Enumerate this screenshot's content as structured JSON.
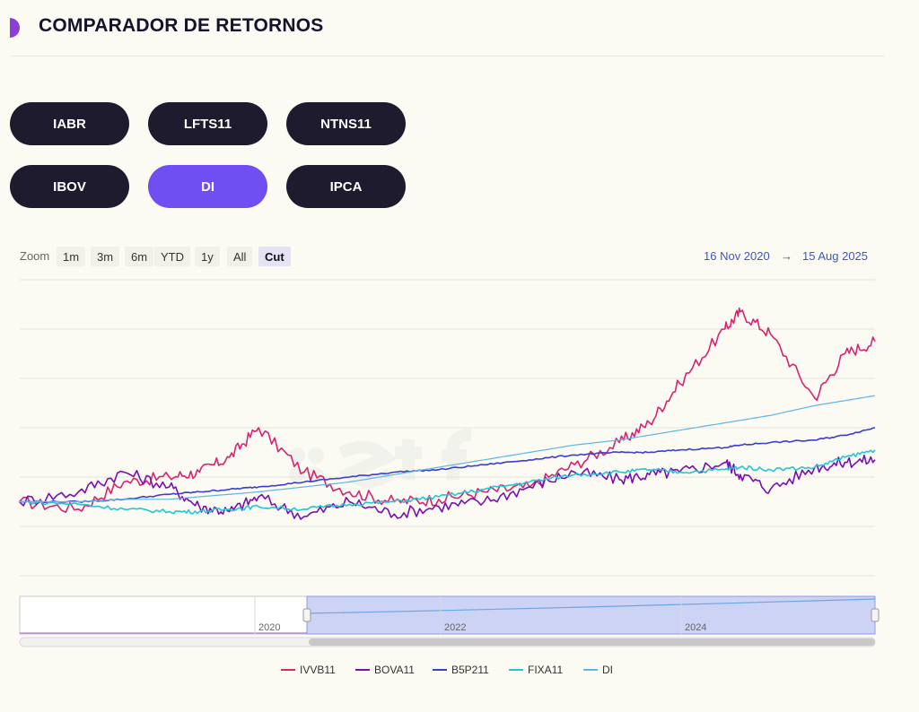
{
  "header": {
    "title": "COMPARADOR DE RETORNOS"
  },
  "buttons": [
    {
      "label": "IABR",
      "active": false
    },
    {
      "label": "LFTS11",
      "active": false
    },
    {
      "label": "NTNS11",
      "active": false
    },
    {
      "label": "IBOV",
      "active": false
    },
    {
      "label": "DI",
      "active": true
    },
    {
      "label": "IPCA",
      "active": false
    }
  ],
  "zoom": {
    "label": "Zoom",
    "options": [
      "1m",
      "3m",
      "6m",
      "YTD",
      "1y",
      "All",
      "Cut"
    ],
    "selected": "Cut"
  },
  "date_range": {
    "from": "16 Nov 2020",
    "arrow": "→",
    "to": "15 Aug 2025"
  },
  "colors": {
    "IVVB11": "#d6246e",
    "BOVA11": "#7a0fb0",
    "B5P211": "#3b3fcf",
    "FIXA11": "#22c6d6",
    "DI": "#5fb5e8",
    "accent": "#6f4ff2",
    "pill": "#1e1b2e"
  },
  "chart_data": {
    "type": "line",
    "xlim": [
      "2020-11-16",
      "2025-08-15"
    ],
    "series": [
      {
        "name": "IVVB11",
        "x": [
          "2020-11",
          "2021-03",
          "2021-06",
          "2021-09",
          "2021-11",
          "2022-01",
          "2022-03",
          "2022-06",
          "2022-09",
          "2022-12",
          "2023-03",
          "2023-06",
          "2023-09",
          "2023-12",
          "2024-03",
          "2024-05",
          "2024-07",
          "2024-10",
          "2024-11",
          "2025-01",
          "2025-04",
          "2025-06",
          "2025-08"
        ],
        "values": [
          100,
          97,
          108,
          110,
          112,
          118,
          130,
          112,
          104,
          100,
          101,
          104,
          106,
          115,
          124,
          132,
          148,
          170,
          177,
          168,
          142,
          160,
          165
        ]
      },
      {
        "name": "BOVA11",
        "x": [
          "2020-11",
          "2021-03",
          "2021-06",
          "2021-09",
          "2021-11",
          "2022-01",
          "2022-03",
          "2022-06",
          "2022-09",
          "2022-12",
          "2023-03",
          "2023-06",
          "2023-09",
          "2023-12",
          "2024-03",
          "2024-05",
          "2024-07",
          "2024-10",
          "2024-11",
          "2025-01",
          "2025-04",
          "2025-06",
          "2025-08"
        ],
        "values": [
          100,
          104,
          112,
          106,
          98,
          96,
          102,
          94,
          100,
          95,
          98,
          100,
          106,
          112,
          109,
          111,
          112,
          116,
          111,
          105,
          114,
          116,
          117
        ]
      },
      {
        "name": "B5P211",
        "x": [
          "2020-11",
          "2021-03",
          "2021-06",
          "2021-09",
          "2021-11",
          "2022-01",
          "2022-03",
          "2022-06",
          "2022-09",
          "2022-12",
          "2023-03",
          "2023-06",
          "2023-09",
          "2023-12",
          "2024-03",
          "2024-05",
          "2024-07",
          "2024-10",
          "2024-11",
          "2025-01",
          "2025-04",
          "2025-06",
          "2025-08"
        ],
        "values": [
          100,
          100,
          101,
          103,
          104,
          105,
          106,
          108,
          110,
          112,
          113,
          115,
          117,
          119,
          120,
          120,
          121,
          122,
          123,
          124,
          125,
          127,
          130
        ]
      },
      {
        "name": "FIXA11",
        "x": [
          "2020-11",
          "2021-03",
          "2021-06",
          "2021-09",
          "2021-11",
          "2022-01",
          "2022-03",
          "2022-06",
          "2022-09",
          "2022-12",
          "2023-03",
          "2023-06",
          "2023-09",
          "2023-12",
          "2024-03",
          "2024-05",
          "2024-07",
          "2024-10",
          "2024-11",
          "2025-01",
          "2025-04",
          "2025-06",
          "2025-08"
        ],
        "values": [
          100,
          99,
          97,
          96,
          96,
          97,
          98,
          97,
          99,
          100,
          102,
          105,
          108,
          111,
          112,
          113,
          112,
          113,
          114,
          113,
          114,
          118,
          121
        ]
      },
      {
        "name": "DI",
        "x": [
          "2020-11",
          "2021-03",
          "2021-06",
          "2021-09",
          "2021-11",
          "2022-01",
          "2022-03",
          "2022-06",
          "2022-09",
          "2022-12",
          "2023-03",
          "2023-06",
          "2023-09",
          "2023-12",
          "2024-03",
          "2024-05",
          "2024-07",
          "2024-10",
          "2024-11",
          "2025-01",
          "2025-04",
          "2025-06",
          "2025-08"
        ],
        "values": [
          100,
          100,
          101,
          101,
          102,
          103,
          104,
          106,
          108,
          111,
          114,
          117,
          120,
          123,
          125,
          127,
          129,
          132,
          133,
          135,
          139,
          141,
          143
        ]
      }
    ],
    "navigator": {
      "tick_labels": [
        "2020",
        "2022",
        "2024"
      ]
    },
    "grid": true,
    "legend": "bottom"
  }
}
